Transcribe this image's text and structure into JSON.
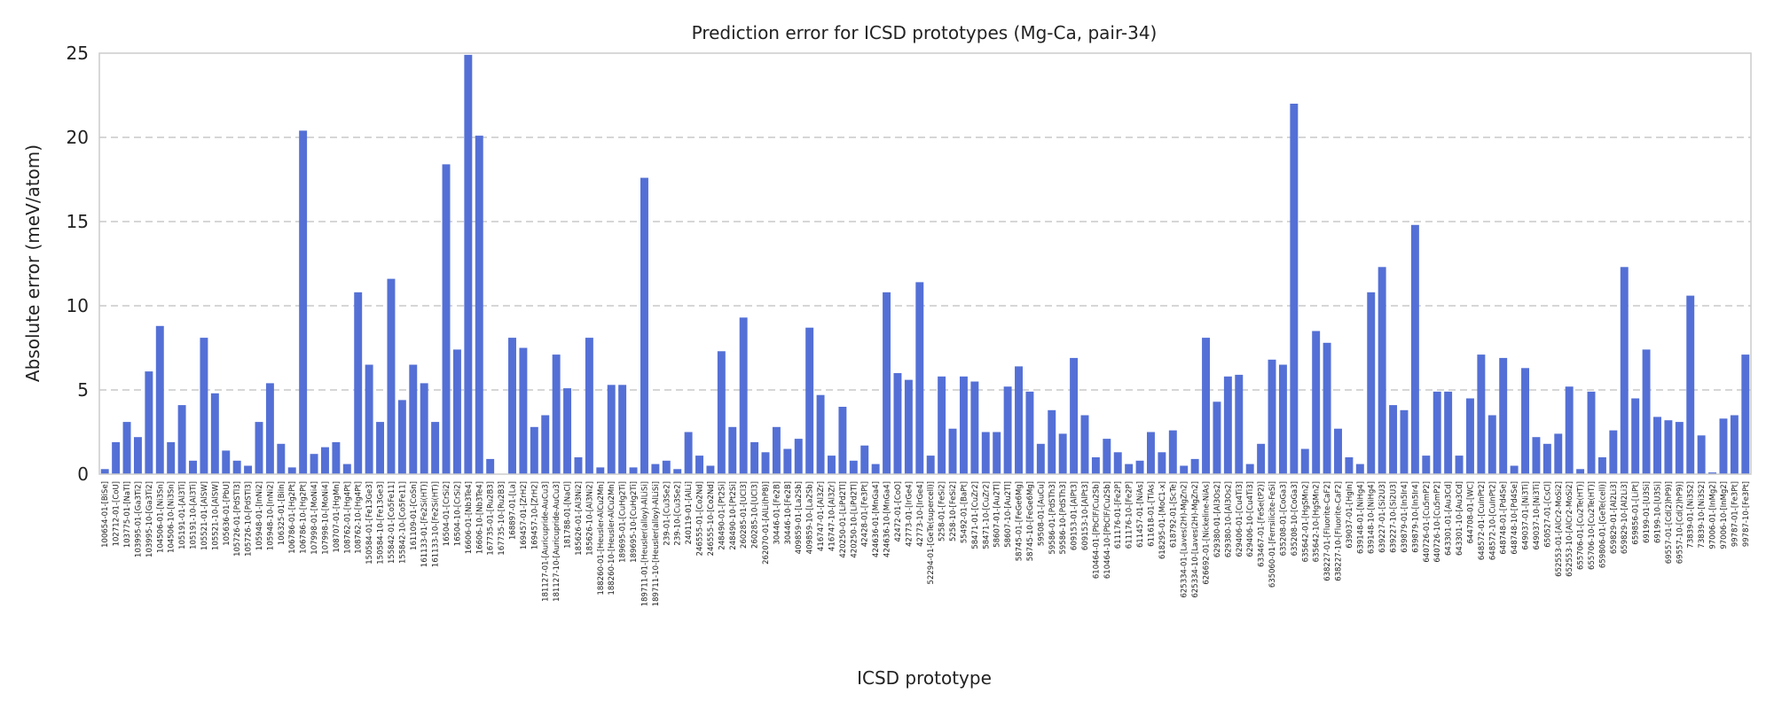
{
  "chart_data": {
    "type": "bar",
    "title": "Prediction error for ICSD prototypes (Mg-Ca, pair-34)",
    "xlabel": "ICSD prototype",
    "ylabel": "Absolute error (meV/atom)",
    "ylim": [
      0,
      25
    ],
    "yticks": [
      0,
      5,
      10,
      15,
      20,
      25
    ],
    "grid": "y-dashed",
    "bar_color": "#5470d6",
    "categories": [
      "100654-01-[BiSe]",
      "102712-01-[CoU]",
      "103775-01-[NaTl]",
      "103995-01-[Ga3Ti2]",
      "103995-10-[Ga3Ti2]",
      "104506-01-[Ni3Sn]",
      "104506-10-[Ni3Sn]",
      "105191-01-[Al3Ti]",
      "105191-10-[Al3Ti]",
      "105521-01-[AlSW]",
      "105521-10-[AlSW]",
      "105636-01-[PbU]",
      "105726-01-[PdSTl3]",
      "105726-10-[PdSTl3]",
      "105948-01-[InNi2]",
      "105948-10-[InNi2]",
      "106325-01-[BiIn]",
      "106786-01-[Hg2Pt]",
      "106786-10-[Hg2Pt]",
      "107998-01-[MoNi4]",
      "107998-10-[MoNi4]",
      "108707-01-[HgMn]",
      "108762-01-[Hg4Pt]",
      "108762-10-[Hg4Pt]",
      "150584-01-[Fe13Ge3]",
      "150584-10-[Fe13Ge3]",
      "155842-01-[Co5Fe11]",
      "155842-10-[Co5Fe11]",
      "161109-01-[CoSn]",
      "161133-01-[Fe2Si(HT)]",
      "161133-10-[Fe2Si(HT)]",
      "16504-01-[CrSi2]",
      "16504-10-[CrSi2]",
      "16606-01-[Nb3Te4]",
      "16606-10-[Nb3Te4]",
      "167735-01-[Ru2B3]",
      "167735-10-[Ru2B3]",
      "168897-01-[La]",
      "169457-01-[ZrH2]",
      "169457-10-[ZrH2]",
      "181127-01-[Auricupride-AuCu3]",
      "181127-10-[Auricupride-AuCu3]",
      "181788-01-[NaCl]",
      "185626-01-[Al3Ni2]",
      "185626-10-[Al3Ni2]",
      "188260-01-[Heusler-AlCu2Mn]",
      "188260-10-[Heusler-AlCu2Mn]",
      "189695-01-[CuHg2Ti]",
      "189695-10-[CuHg2Ti]",
      "189711-01-[Heusler(alloy)-AlLiSi]",
      "189711-10-[Heusler(alloy)-AlLiSi]",
      "239-01-[Cu3Se2]",
      "239-10-[Cu3Se2]",
      "240119-01-[AlLi]",
      "246555-01-[Co2Nd]",
      "246555-10-[Co2Nd]",
      "248490-01-[Pt2Si]",
      "248490-10-[Pt2Si]",
      "260285-01-[UCl3]",
      "260285-10-[UCl3]",
      "262070-01-[AlLi(hP8)]",
      "30446-01-[Fe2B]",
      "30446-10-[Fe2B]",
      "409859-01-[La2Sb]",
      "409859-10-[La2Sb]",
      "416747-01-[Al3Zr]",
      "416747-10-[Al3Zr]",
      "420250-01-[LiPd2Tl]",
      "420250-10-[LiPd2Tl]",
      "42428-01-[Fe3Pt]",
      "424636-01-[MnGa4]",
      "424636-10-[MnGa4]",
      "42472-01-[CoO]",
      "42773-01-[IrGe4]",
      "42773-10-[IrGe4]",
      "52294-01-[GeTe(supercell)]",
      "5258-01-[FeSi2]",
      "5258-10-[FeSi2]",
      "55492-01-[BaPt]",
      "58471-01-[CuZr2]",
      "58471-10-[CuZr2]",
      "58607-01-[Au2Tl]",
      "58607-10-[Au2Tl]",
      "58745-01-[FeGe6Mg]",
      "58745-10-[FeGe6Mg]",
      "59508-01-[AuCu]",
      "59586-01-[PdSTh3]",
      "59586-10-[PdSTh3]",
      "609153-01-[AlPt3]",
      "609153-10-[AlPt3]",
      "610464-01-[PbClF/Cu2Sb]",
      "610464-10-[PbClF/Cu2Sb]",
      "611176-01-[Fe2P]",
      "611176-10-[Fe2P]",
      "611457-01-[NiAs]",
      "611618-01-[TlAs]",
      "618295-01-[MoC1-x]",
      "618792-01-[ScTe]",
      "625334-01-[Laves(2H)-MgZn2]",
      "625334-10-[Laves(2H)-MgZn2]",
      "626692-01-[Nickeline-NiAs]",
      "629380-01-[Al3Os2]",
      "629380-10-[Al3Os2]",
      "629406-01-[Cu4Ti3]",
      "629406-10-[Cu4Ti3]",
      "633467-01-[FeSe(tP2)]",
      "635060-01-[Ferrsilicite-FeSi]",
      "635208-01-[CoGa3]",
      "635208-10-[CoGa3]",
      "635642-01-[HgSMn2]",
      "635642-10-[HgSMn2]",
      "638227-01-[Fluorite-CaF2]",
      "638227-10-[Fluorite-CaF2]",
      "639037-01-[HgIn]",
      "639148-01-[NiHg4]",
      "639148-10-[NiHg4]",
      "639227-01-[Si2U3]",
      "639227-10-[Si2U3]",
      "639879-01-[In5Ir4]",
      "639879-10-[In5Ir4]",
      "640726-01-[Cu5mP2]",
      "640726-10-[Cu5mP2]",
      "643301-01-[Au3Cd]",
      "643301-10-[Au3Cd]",
      "644708-01-[WC]",
      "648572-01-[CuInPt2]",
      "648572-10-[CuInPt2]",
      "648748-01-[Pd4Se]",
      "648748-10-[Pd4Se]",
      "649037-01-[Ni3Ti]",
      "649037-10-[Ni3Ti]",
      "650527-01-[CsCl]",
      "652553-01-[AlCr2-MoSi2]",
      "652553-10-[AlCr2-MoSi2]",
      "655706-01-[Cu2Te(HT)]",
      "655706-10-[Cu2Te(HT)]",
      "659806-01-[GeTe(cell)]",
      "659829-01-[Al2Li3]",
      "659829-10-[Al2Li3]",
      "659856-01-[LiPt]",
      "69199-01-[U3Si]",
      "69199-10-[U3Si]",
      "69557-01-[Cd(2)hP9)]",
      "69557-10-[Cd(2)hP9)]",
      "73839-01-[Ni3S2]",
      "73839-10-[Ni3S2]",
      "97006-01-[InMg2]",
      "97006-10-[InMg2]",
      "99787-01-[Fe3Pt]",
      "99787-10-[Fe3Pt]"
    ],
    "values": [
      0.3,
      1.9,
      3.1,
      2.2,
      6.1,
      8.8,
      1.9,
      4.1,
      0.8,
      8.1,
      4.8,
      1.4,
      0.8,
      0.5,
      3.1,
      5.4,
      1.8,
      0.4,
      20.4,
      1.2,
      1.6,
      1.9,
      0.6,
      10.8,
      6.5,
      3.1,
      11.6,
      4.4,
      6.5,
      5.4,
      3.1,
      18.4,
      7.4,
      24.9,
      20.1,
      0.9,
      0.0,
      8.1,
      7.5,
      2.8,
      3.5,
      7.1,
      5.1,
      1.0,
      8.1,
      0.4,
      5.3,
      5.3,
      0.4,
      17.6,
      0.6,
      0.8,
      0.3,
      2.5,
      1.1,
      0.5,
      7.3,
      2.8,
      9.3,
      1.9,
      1.3,
      2.8,
      1.5,
      2.1,
      8.7,
      4.7,
      1.1,
      4.0,
      0.8,
      1.7,
      0.6,
      10.8,
      6.0,
      5.6,
      11.4,
      1.1,
      5.8,
      2.7,
      5.8,
      5.5,
      2.5,
      2.5,
      5.2,
      6.4,
      4.9,
      1.8,
      3.8,
      2.4,
      6.9,
      3.5,
      1.0,
      2.1,
      1.3,
      0.6,
      0.8,
      2.5,
      1.3,
      2.6,
      0.5,
      0.9,
      8.1,
      4.3,
      5.8,
      5.9,
      0.6,
      1.8,
      6.8,
      6.5,
      22.0,
      1.5,
      8.5,
      7.8,
      2.7,
      1.0,
      0.6,
      10.8,
      12.3,
      4.1,
      3.8,
      14.8,
      1.1,
      4.9,
      4.9,
      1.1,
      4.5,
      7.1,
      3.5,
      6.9,
      0.5,
      6.3,
      2.2,
      1.8,
      2.4,
      5.2,
      0.3,
      4.9,
      1.0,
      2.6,
      12.3,
      4.5,
      7.4,
      3.4,
      3.2,
      3.1,
      10.6,
      2.3,
      0.1,
      3.3,
      3.5,
      7.1
    ]
  }
}
